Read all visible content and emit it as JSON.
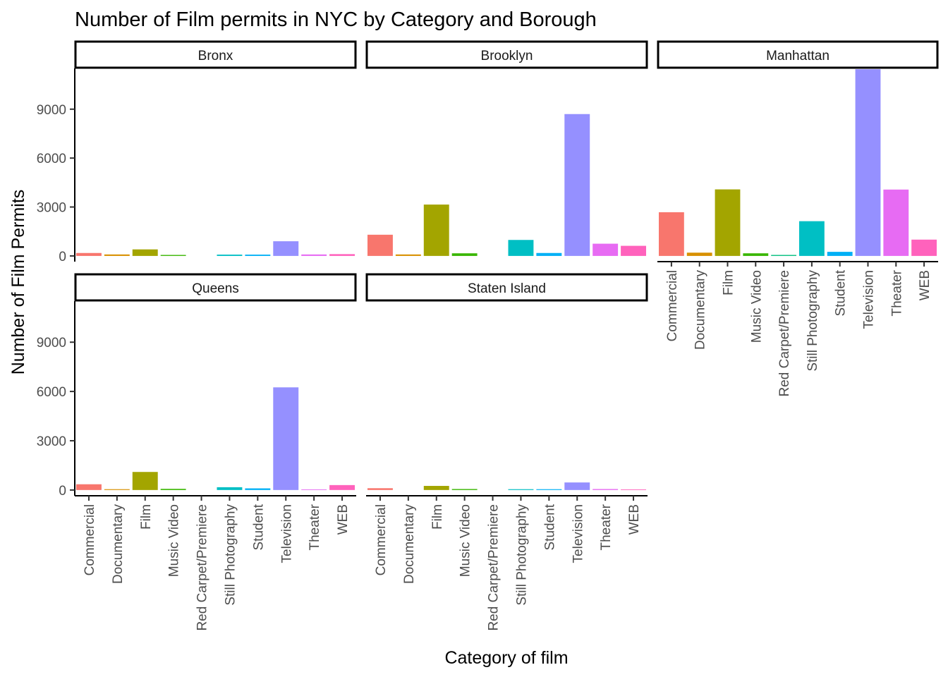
{
  "chart_data": {
    "type": "bar",
    "title": "Number of Film permits in NYC by Category and Borough",
    "xlabel": "Category of film",
    "ylabel": "Number of Film Permits",
    "ylim": [
      -350,
      11500
    ],
    "yticks": [
      0,
      3000,
      6000,
      9000
    ],
    "grid": false,
    "legend": "none",
    "categories": [
      "Commercial",
      "Documentary",
      "Film",
      "Music Video",
      "Red Carpet/Premiere",
      "Still Photography",
      "Student",
      "Television",
      "Theater",
      "WEB"
    ],
    "colors": [
      "#F8766D",
      "#D89000",
      "#A3A500",
      "#39B600",
      "#00BF7D",
      "#00BFC4",
      "#00B0F6",
      "#9590FF",
      "#E76BF3",
      "#FF62BC"
    ],
    "facets": [
      {
        "name": "Bronx",
        "values": [
          180,
          90,
          400,
          60,
          0,
          80,
          80,
          900,
          90,
          110
        ]
      },
      {
        "name": "Brooklyn",
        "values": [
          1300,
          90,
          3150,
          160,
          0,
          980,
          180,
          8700,
          750,
          620
        ]
      },
      {
        "name": "Manhattan",
        "values": [
          2680,
          200,
          4080,
          160,
          60,
          2130,
          250,
          11450,
          4070,
          1000
        ]
      },
      {
        "name": "Queens",
        "values": [
          350,
          50,
          1100,
          70,
          0,
          170,
          100,
          6250,
          40,
          300
        ]
      },
      {
        "name": "Staten Island",
        "values": [
          110,
          0,
          250,
          60,
          0,
          50,
          50,
          460,
          60,
          40
        ]
      }
    ]
  }
}
